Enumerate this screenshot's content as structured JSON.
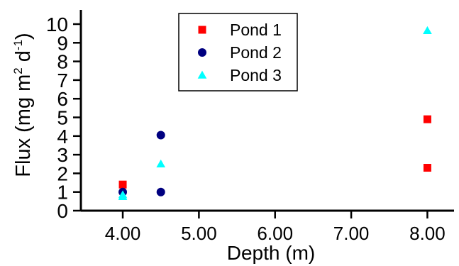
{
  "chart_data": {
    "type": "scatter",
    "xlabel": "Depth (m)",
    "ylabel": {
      "main": "Flux (mg m",
      "sup1": "2",
      "mid": " d",
      "sup2": "-1",
      "end": ")"
    },
    "xlim": [
      3.45,
      8.35
    ],
    "ylim": [
      0,
      10
    ],
    "x_ticks": [
      4,
      5,
      6,
      7,
      8
    ],
    "x_tick_labels": [
      "4.00",
      "5.00",
      "6.00",
      "7.00",
      "8.00"
    ],
    "y_ticks": [
      0,
      1,
      2,
      3,
      4,
      5,
      6,
      7,
      8,
      9,
      10
    ],
    "y_tick_labels": [
      "0",
      "1",
      "2",
      "3",
      "4",
      "5",
      "6",
      "7",
      "8",
      "9",
      "10"
    ],
    "grid": false,
    "legend_position": "top-center",
    "series": [
      {
        "name": "Pond 1",
        "marker": "square",
        "color": "#ff0000",
        "points": [
          [
            4.0,
            1.4
          ],
          [
            8.0,
            4.9
          ],
          [
            8.0,
            2.3
          ]
        ]
      },
      {
        "name": "Pond 2",
        "marker": "circle",
        "color": "#000080",
        "points": [
          [
            4.0,
            1.0
          ],
          [
            4.5,
            4.05
          ],
          [
            4.5,
            1.0
          ]
        ]
      },
      {
        "name": "Pond 3",
        "marker": "triangle",
        "color": "#00ffff",
        "points": [
          [
            4.0,
            0.75
          ],
          [
            4.0,
            0.85
          ],
          [
            4.5,
            2.5
          ],
          [
            8.0,
            9.65
          ]
        ]
      }
    ]
  }
}
